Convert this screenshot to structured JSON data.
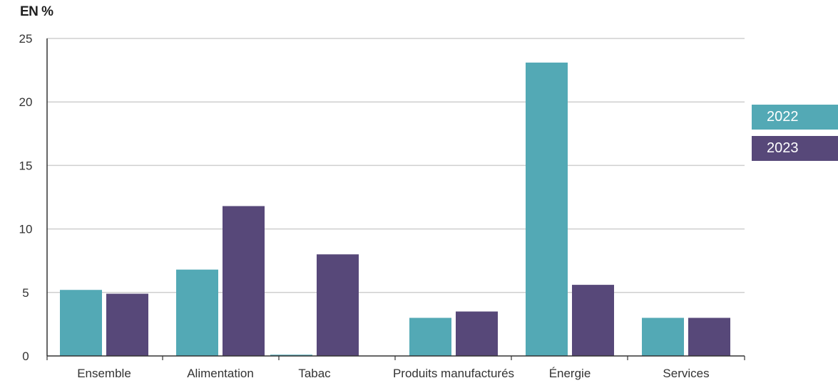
{
  "chart_data": {
    "type": "bar",
    "ylabel": "EN %",
    "ylim": [
      0,
      25
    ],
    "yticks": [
      0,
      5,
      10,
      15,
      20,
      25
    ],
    "grid": true,
    "legend_position": "right",
    "categories": [
      "Ensemble",
      "Alimentation",
      "Tabac",
      "Produits manufacturés",
      "Énergie",
      "Services"
    ],
    "series": [
      {
        "name": "2022",
        "color": "#53a9b5",
        "values": [
          5.2,
          6.8,
          0.1,
          3.0,
          23.1,
          3.0
        ]
      },
      {
        "name": "2023",
        "color": "#574879",
        "values": [
          4.9,
          11.8,
          8.0,
          3.5,
          5.6,
          3.0
        ]
      }
    ]
  }
}
